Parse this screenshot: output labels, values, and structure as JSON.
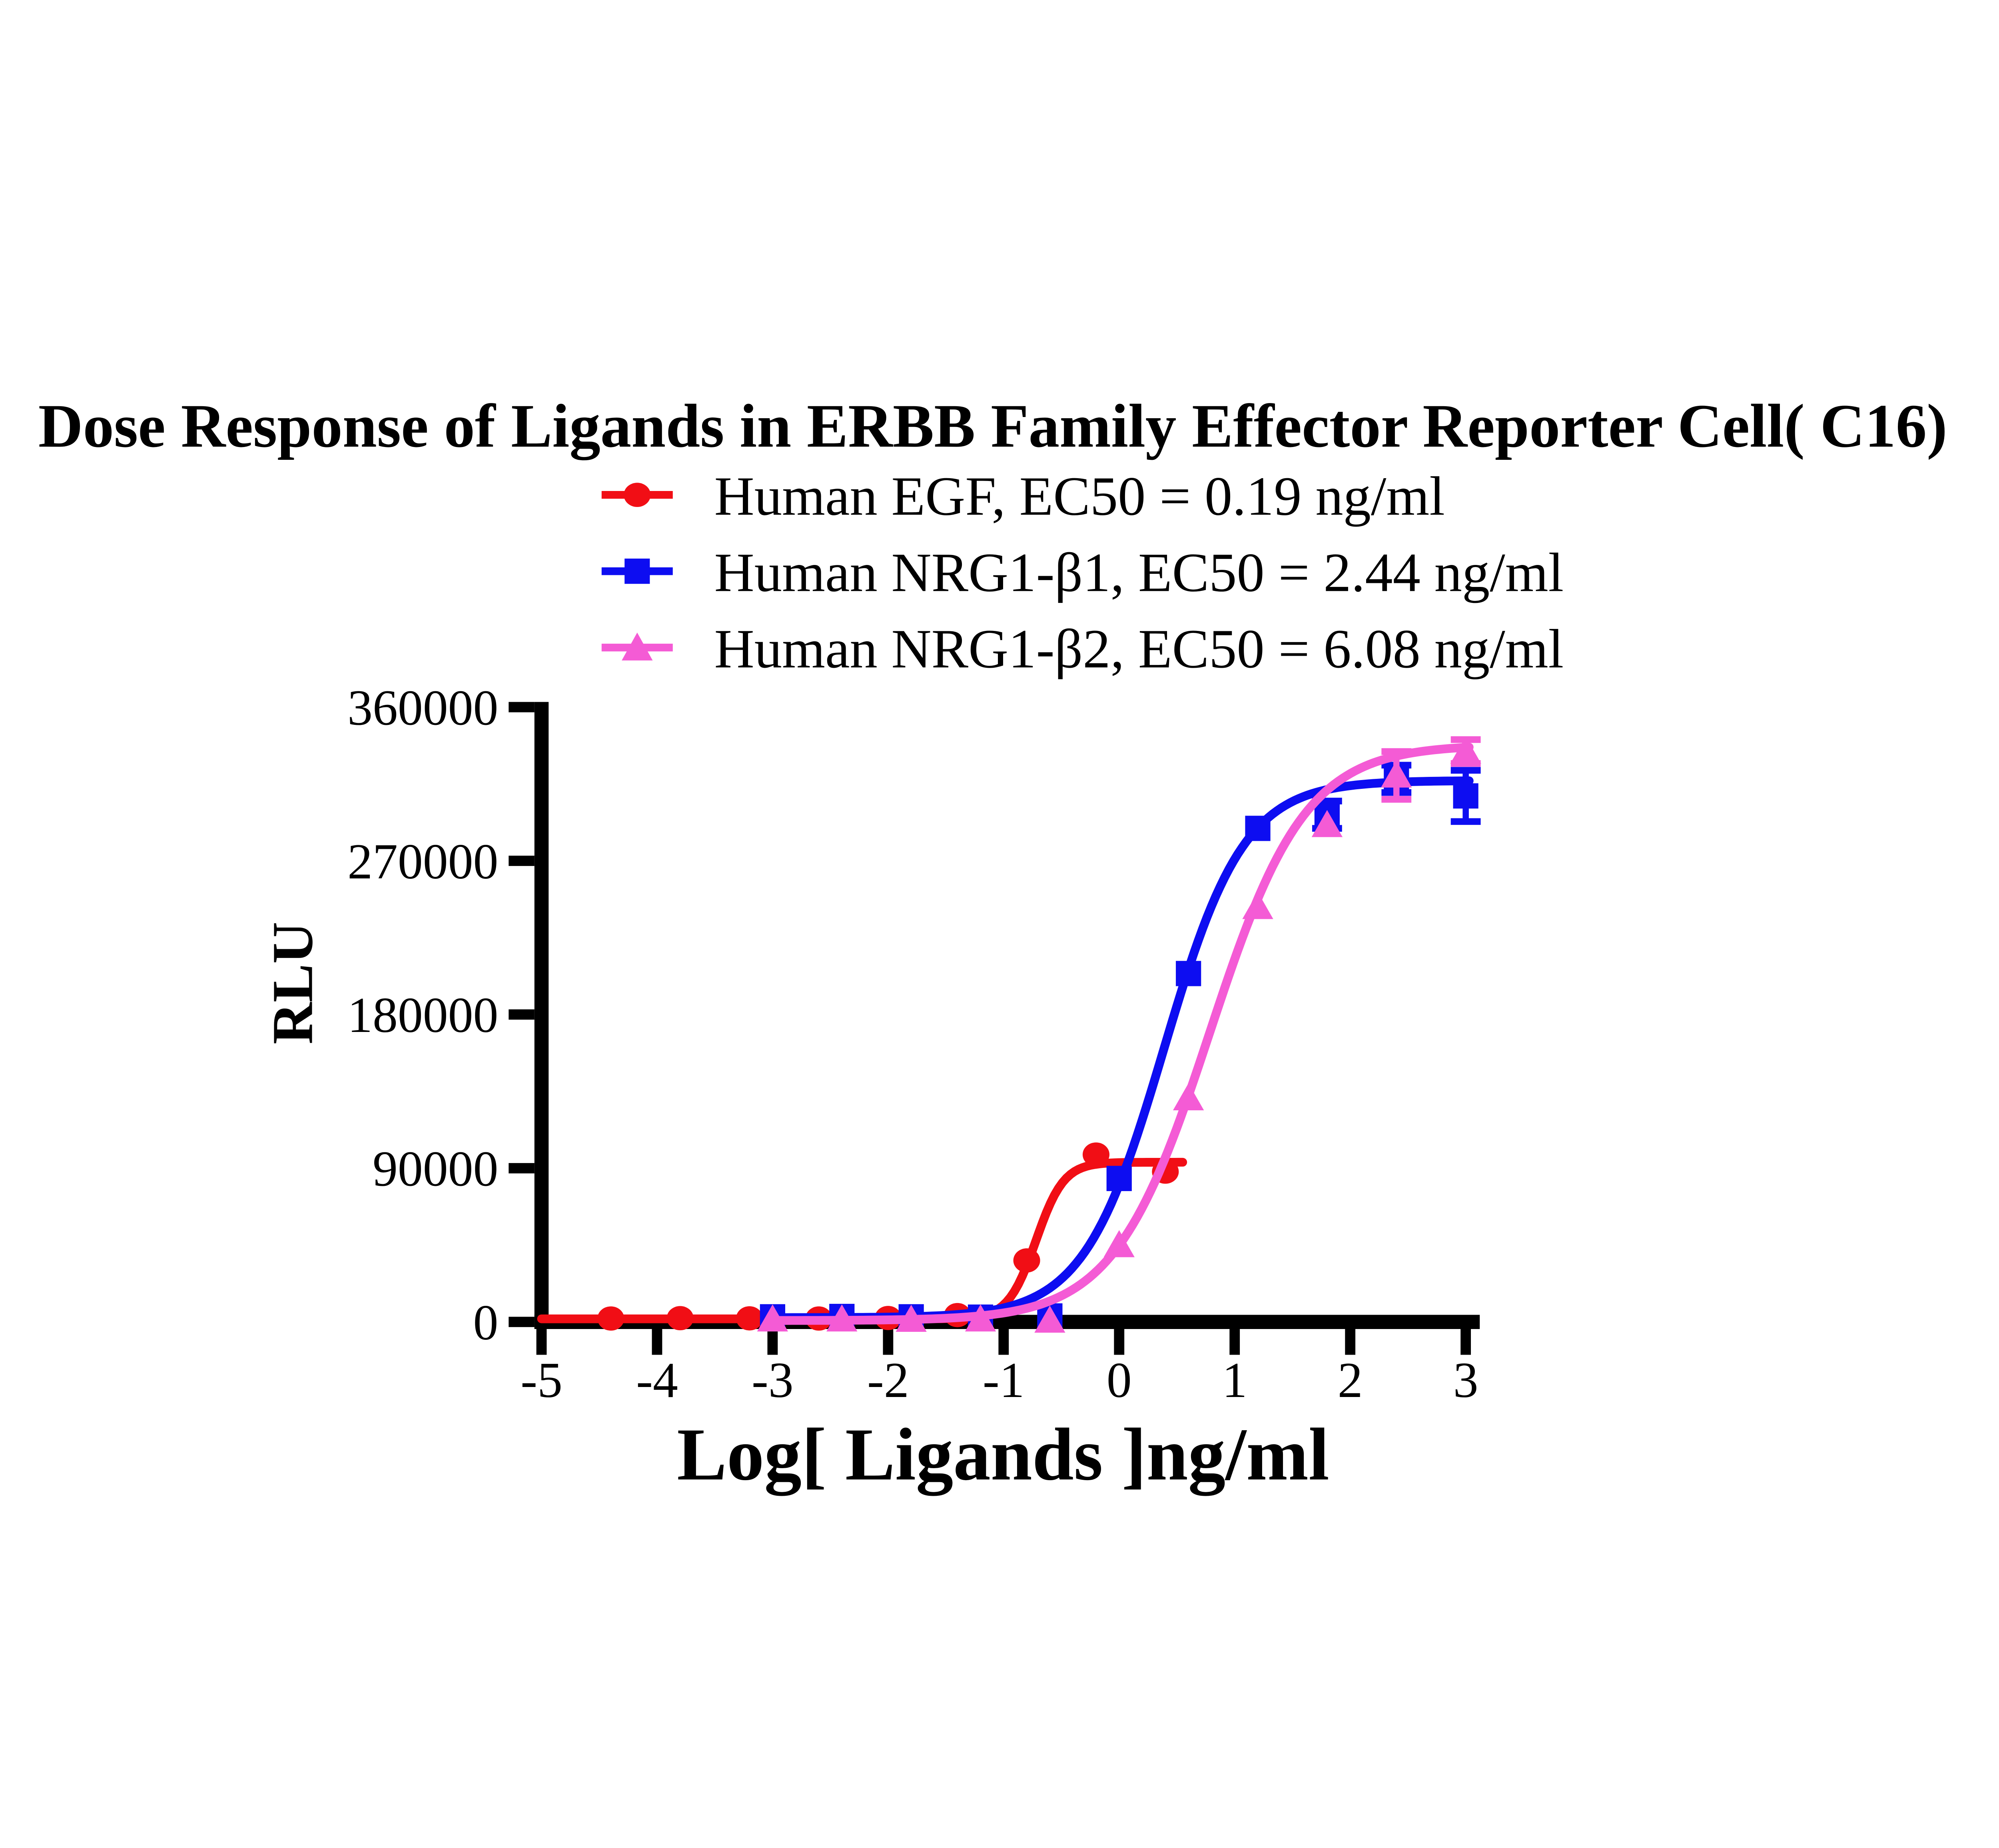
{
  "title": "Dose Response of Ligands in ERBB Family Effector Reporter Cell( C16)",
  "chart_data": {
    "type": "line",
    "title": "Dose Response of Ligands in ERBB Family Effector Reporter Cell( C16)",
    "xlabel": "Log[ Ligands ]ng/ml",
    "ylabel": "RLU",
    "x_ticks": [
      -5,
      -4,
      -3,
      -2,
      -1,
      0,
      1,
      2,
      3
    ],
    "y_ticks": [
      0,
      90000,
      180000,
      270000,
      360000
    ],
    "xlim": [
      -5,
      3.05
    ],
    "ylim": [
      0,
      360000
    ],
    "grid": false,
    "legend_position": "top-center",
    "background": "#ffffff",
    "axis_color": "#000000",
    "series": [
      {
        "name": "Human EGF, EC50 = 0.19 ng/ml",
        "ec50_ng_ml": 0.19,
        "color": "#f10e15",
        "marker": "circle",
        "x": [
          -4.4,
          -3.8,
          -3.2,
          -2.6,
          -2.0,
          -1.4,
          -0.8,
          -0.2,
          0.4
        ],
        "y": [
          2000,
          2200,
          2100,
          2000,
          2300,
          4000,
          36000,
          98000,
          88000
        ],
        "err": [
          0,
          0,
          0,
          0,
          0,
          0,
          0,
          0,
          0
        ],
        "fit": {
          "bottom": 1800,
          "top": 93500,
          "log_ec50": -0.72,
          "hill": 3.6,
          "curve_range": [
            -5,
            0.55
          ]
        }
      },
      {
        "name": "Human NRG1-β1, EC50 = 2.44 ng/ml",
        "ec50_ng_ml": 2.44,
        "color": "#0d0df1",
        "marker": "square",
        "x": [
          -3.0,
          -2.4,
          -1.8,
          -1.2,
          -0.6,
          0.0,
          0.6,
          1.2,
          1.8,
          2.4,
          3.0
        ],
        "y": [
          3000,
          3200,
          3000,
          2800,
          3500,
          84000,
          204000,
          289000,
          297000,
          318000,
          308000
        ],
        "err": [
          0,
          0,
          0,
          0,
          0,
          0,
          0,
          0,
          8000,
          8000,
          15000
        ],
        "fit": {
          "bottom": 2500,
          "top": 317000,
          "log_ec50": 0.387,
          "hill": 1.25,
          "curve_range": [
            -3.02,
            3.03
          ]
        }
      },
      {
        "name": "Human NRG1-β2, EC50 = 6.08 ng/ml",
        "ec50_ng_ml": 6.08,
        "color": "#f45bd5",
        "marker": "triangle",
        "x": [
          -3.0,
          -2.4,
          -1.8,
          -1.2,
          -0.6,
          0.0,
          0.6,
          1.2,
          1.8,
          2.4,
          3.0
        ],
        "y": [
          1500,
          1500,
          1300,
          1500,
          800,
          45000,
          131000,
          243000,
          291000,
          320000,
          334000
        ],
        "err": [
          0,
          0,
          0,
          0,
          0,
          0,
          0,
          0,
          0,
          14000,
          7000
        ],
        "fit": {
          "bottom": 800,
          "top": 338000,
          "log_ec50": 0.784,
          "hill": 1.05,
          "curve_range": [
            -3.02,
            3.03
          ]
        }
      }
    ]
  }
}
